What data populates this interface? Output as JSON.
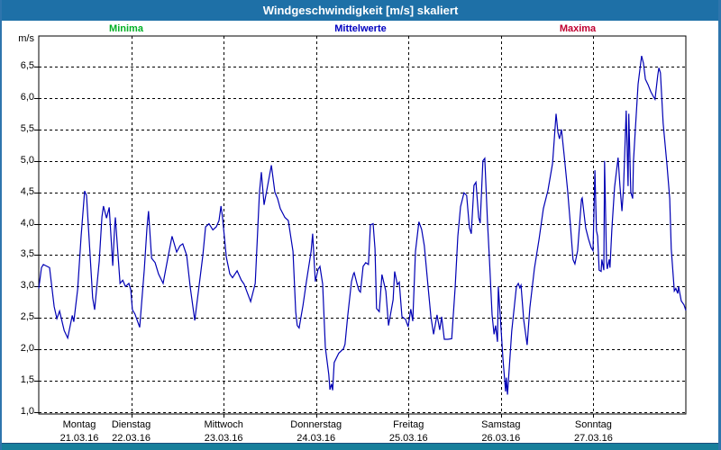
{
  "window": {
    "title": "Windgeschwindigkeit [m/s] skaliert",
    "title_bar_color": "#1e70a7",
    "border_color": "#2e75ad",
    "status_bar_color": "#177f9b"
  },
  "legend": {
    "items": [
      {
        "label": "Minima",
        "color": "#00b025"
      },
      {
        "label": "Mittelwerte",
        "color": "#0000c0"
      },
      {
        "label": "Maxima",
        "color": "#c00030"
      }
    ]
  },
  "chart_data": {
    "type": "line",
    "title": "Windgeschwindigkeit [m/s] skaliert",
    "ylabel": "m/s",
    "unit_label": "m/s",
    "grid": "dashed",
    "legend_entries": [
      "Minima",
      "Mittelwerte",
      "Maxima"
    ],
    "ylim": [
      1.0,
      7.0
    ],
    "y_ticks": [
      1.0,
      1.5,
      2.0,
      2.5,
      3.0,
      3.5,
      4.0,
      4.5,
      5.0,
      5.5,
      6.0,
      6.5
    ],
    "y_tick_labels": [
      "1,0",
      "1,5",
      "2,0",
      "2,5",
      "3,0",
      "3,5",
      "4,0",
      "4,5",
      "5,0",
      "5,5",
      "6,0",
      "6,5"
    ],
    "x_unit": "hours_since_start",
    "x_range_hours": [
      0,
      168
    ],
    "x_axis_days": [
      {
        "weekday": "Montag",
        "date": "21.03.16"
      },
      {
        "weekday": "Dienstag",
        "date": "22.03.16"
      },
      {
        "weekday": "Mittwoch",
        "date": "23.03.16"
      },
      {
        "weekday": "Donnerstag",
        "date": "24.03.16"
      },
      {
        "weekday": "Freitag",
        "date": "25.03.16"
      },
      {
        "weekday": "Samstag",
        "date": "26.03.16"
      },
      {
        "weekday": "Sonntag",
        "date": "27.03.16"
      }
    ],
    "series": [
      {
        "name": "Mittelwerte",
        "color": "#0000b4",
        "points": [
          [
            0,
            2.97
          ],
          [
            0.7,
            3.3
          ],
          [
            1.2,
            3.35
          ],
          [
            2.8,
            3.3
          ],
          [
            4.0,
            2.68
          ],
          [
            4.7,
            2.49
          ],
          [
            5.4,
            2.61
          ],
          [
            6.6,
            2.3
          ],
          [
            7.5,
            2.18
          ],
          [
            8.7,
            2.54
          ],
          [
            9.1,
            2.44
          ],
          [
            10.1,
            2.96
          ],
          [
            11.0,
            3.8
          ],
          [
            11.9,
            4.52
          ],
          [
            12.4,
            4.45
          ],
          [
            13.3,
            3.54
          ],
          [
            14.0,
            2.82
          ],
          [
            14.5,
            2.63
          ],
          [
            15.7,
            3.4
          ],
          [
            16.4,
            4.11
          ],
          [
            16.8,
            4.28
          ],
          [
            17.6,
            4.09
          ],
          [
            18.3,
            4.26
          ],
          [
            19.2,
            3.33
          ],
          [
            19.7,
            3.95
          ],
          [
            19.9,
            4.1
          ],
          [
            21.1,
            3.05
          ],
          [
            21.8,
            3.1
          ],
          [
            22.5,
            3.0
          ],
          [
            23.4,
            3.05
          ],
          [
            23.9,
            2.95
          ],
          [
            24.3,
            2.63
          ],
          [
            25.0,
            2.56
          ],
          [
            26.2,
            2.35
          ],
          [
            27.4,
            3.27
          ],
          [
            28.1,
            3.94
          ],
          [
            28.5,
            4.2
          ],
          [
            29.3,
            3.45
          ],
          [
            30.2,
            3.38
          ],
          [
            31.1,
            3.2
          ],
          [
            32.3,
            3.05
          ],
          [
            33.5,
            3.45
          ],
          [
            34.6,
            3.8
          ],
          [
            35.8,
            3.55
          ],
          [
            36.7,
            3.65
          ],
          [
            37.4,
            3.68
          ],
          [
            38.4,
            3.5
          ],
          [
            39.3,
            3.0
          ],
          [
            40.5,
            2.46
          ],
          [
            41.6,
            3.0
          ],
          [
            42.6,
            3.5
          ],
          [
            43.3,
            3.95
          ],
          [
            44.2,
            4.0
          ],
          [
            45.2,
            3.9
          ],
          [
            46.1,
            3.95
          ],
          [
            46.8,
            4.05
          ],
          [
            47.3,
            4.28
          ],
          [
            47.7,
            4.1
          ],
          [
            48.7,
            3.47
          ],
          [
            49.6,
            3.2
          ],
          [
            50.3,
            3.14
          ],
          [
            51.5,
            3.25
          ],
          [
            52.6,
            3.1
          ],
          [
            53.3,
            3.04
          ],
          [
            55.0,
            2.76
          ],
          [
            56.2,
            3.05
          ],
          [
            57.3,
            4.5
          ],
          [
            57.8,
            4.82
          ],
          [
            58.5,
            4.3
          ],
          [
            59.4,
            4.6
          ],
          [
            60.4,
            4.93
          ],
          [
            61.3,
            4.5
          ],
          [
            62.0,
            4.4
          ],
          [
            62.7,
            4.24
          ],
          [
            63.9,
            4.1
          ],
          [
            64.8,
            4.05
          ],
          [
            66.0,
            3.56
          ],
          [
            66.7,
            2.6
          ],
          [
            67.1,
            2.38
          ],
          [
            67.6,
            2.34
          ],
          [
            68.6,
            2.7
          ],
          [
            69.5,
            3.08
          ],
          [
            70.7,
            3.56
          ],
          [
            71.1,
            3.84
          ],
          [
            71.6,
            3.3
          ],
          [
            71.8,
            3.08
          ],
          [
            72.5,
            3.27
          ],
          [
            73.0,
            3.32
          ],
          [
            73.7,
            3.04
          ],
          [
            74.4,
            2.03
          ],
          [
            75.3,
            1.6
          ],
          [
            75.6,
            1.36
          ],
          [
            76.0,
            1.45
          ],
          [
            76.3,
            1.35
          ],
          [
            76.7,
            1.79
          ],
          [
            77.9,
            1.94
          ],
          [
            79.1,
            2.01
          ],
          [
            79.5,
            2.08
          ],
          [
            80.2,
            2.53
          ],
          [
            81.2,
            3.08
          ],
          [
            81.7,
            3.2
          ],
          [
            81.9,
            3.22
          ],
          [
            82.6,
            3.05
          ],
          [
            83.1,
            2.94
          ],
          [
            83.5,
            2.91
          ],
          [
            84.2,
            3.32
          ],
          [
            84.9,
            3.38
          ],
          [
            85.6,
            3.35
          ],
          [
            86.1,
            3.98
          ],
          [
            86.8,
            4.0
          ],
          [
            87.3,
            3.6
          ],
          [
            87.7,
            2.65
          ],
          [
            88.4,
            2.6
          ],
          [
            89.1,
            3.19
          ],
          [
            90.1,
            2.93
          ],
          [
            90.8,
            2.38
          ],
          [
            92.0,
            2.79
          ],
          [
            92.4,
            3.24
          ],
          [
            93.1,
            3.03
          ],
          [
            93.6,
            3.07
          ],
          [
            94.3,
            2.52
          ],
          [
            95.2,
            2.48
          ],
          [
            95.9,
            2.36
          ],
          [
            96.6,
            2.64
          ],
          [
            97.1,
            2.45
          ],
          [
            97.8,
            3.56
          ],
          [
            98.7,
            4.03
          ],
          [
            99.4,
            3.91
          ],
          [
            100.1,
            3.65
          ],
          [
            101.1,
            2.98
          ],
          [
            101.8,
            2.52
          ],
          [
            102.5,
            2.24
          ],
          [
            103.4,
            2.55
          ],
          [
            104.1,
            2.31
          ],
          [
            104.6,
            2.52
          ],
          [
            105.3,
            2.16
          ],
          [
            106.2,
            2.16
          ],
          [
            107.2,
            2.17
          ],
          [
            108.1,
            2.98
          ],
          [
            108.8,
            3.8
          ],
          [
            109.5,
            4.27
          ],
          [
            110.4,
            4.49
          ],
          [
            111.1,
            4.45
          ],
          [
            111.8,
            3.94
          ],
          [
            112.3,
            3.84
          ],
          [
            113.0,
            4.61
          ],
          [
            113.5,
            4.66
          ],
          [
            114.2,
            4.1
          ],
          [
            114.6,
            4.01
          ],
          [
            115.3,
            5.0
          ],
          [
            115.8,
            5.04
          ],
          [
            116.5,
            4.03
          ],
          [
            117.0,
            3.45
          ],
          [
            117.7,
            2.55
          ],
          [
            118.2,
            2.24
          ],
          [
            118.6,
            2.38
          ],
          [
            119.1,
            2.12
          ],
          [
            119.3,
            3.0
          ],
          [
            119.8,
            2.55
          ],
          [
            120.5,
            1.86
          ],
          [
            121.2,
            1.33
          ],
          [
            121.4,
            1.55
          ],
          [
            121.7,
            1.28
          ],
          [
            122.8,
            2.29
          ],
          [
            124.0,
            3.0
          ],
          [
            124.5,
            3.05
          ],
          [
            124.9,
            2.98
          ],
          [
            125.2,
            3.02
          ],
          [
            125.9,
            2.47
          ],
          [
            126.8,
            2.07
          ],
          [
            127.5,
            2.66
          ],
          [
            128.7,
            3.29
          ],
          [
            129.9,
            3.76
          ],
          [
            131.0,
            4.24
          ],
          [
            132.2,
            4.53
          ],
          [
            133.4,
            4.96
          ],
          [
            133.8,
            5.3
          ],
          [
            134.3,
            5.75
          ],
          [
            134.8,
            5.45
          ],
          [
            135.2,
            5.35
          ],
          [
            135.7,
            5.5
          ],
          [
            136.4,
            5.1
          ],
          [
            137.3,
            4.53
          ],
          [
            138.0,
            4.0
          ],
          [
            138.7,
            3.43
          ],
          [
            139.2,
            3.36
          ],
          [
            139.9,
            3.57
          ],
          [
            140.9,
            4.39
          ],
          [
            141.1,
            4.41
          ],
          [
            142.0,
            3.93
          ],
          [
            142.7,
            3.76
          ],
          [
            143.4,
            3.62
          ],
          [
            143.9,
            3.57
          ],
          [
            144.4,
            4.85
          ],
          [
            144.8,
            3.89
          ],
          [
            145.1,
            3.8
          ],
          [
            145.5,
            3.26
          ],
          [
            146.0,
            3.24
          ],
          [
            146.2,
            3.43
          ],
          [
            146.7,
            3.26
          ],
          [
            146.9,
            5.0
          ],
          [
            147.4,
            3.4
          ],
          [
            147.6,
            3.28
          ],
          [
            148.1,
            3.43
          ],
          [
            148.3,
            3.3
          ],
          [
            148.8,
            3.91
          ],
          [
            149.5,
            4.58
          ],
          [
            150.4,
            5.05
          ],
          [
            150.9,
            4.6
          ],
          [
            151.4,
            4.2
          ],
          [
            151.8,
            4.55
          ],
          [
            152.5,
            5.8
          ],
          [
            153.0,
            4.6
          ],
          [
            153.2,
            5.75
          ],
          [
            153.7,
            4.5
          ],
          [
            154.2,
            4.4
          ],
          [
            154.4,
            5.0
          ],
          [
            154.9,
            5.51
          ],
          [
            155.6,
            6.22
          ],
          [
            156.5,
            6.67
          ],
          [
            157.0,
            6.55
          ],
          [
            157.5,
            6.3
          ],
          [
            158.2,
            6.21
          ],
          [
            158.9,
            6.1
          ],
          [
            159.6,
            6.02
          ],
          [
            160.0,
            5.98
          ],
          [
            160.7,
            6.36
          ],
          [
            161.0,
            6.48
          ],
          [
            161.4,
            6.4
          ],
          [
            162.1,
            5.6
          ],
          [
            163.1,
            4.93
          ],
          [
            163.8,
            4.4
          ],
          [
            164.2,
            3.6
          ],
          [
            165.0,
            2.93
          ],
          [
            165.4,
            2.97
          ],
          [
            165.9,
            2.89
          ],
          [
            166.1,
            3.0
          ],
          [
            166.8,
            2.77
          ],
          [
            167.5,
            2.71
          ],
          [
            168,
            2.62
          ]
        ]
      }
    ]
  }
}
